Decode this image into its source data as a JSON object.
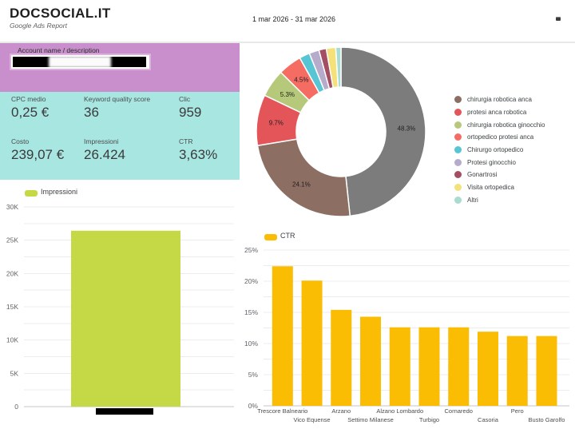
{
  "header": {
    "title": "DOCSOCIAL.IT",
    "subtitle": "Google Ads Report",
    "date_range": "1 mar 2026 - 31 mar 2026",
    "corner_icon": "tiny-dark-widget-icon"
  },
  "account": {
    "label": "Account name / description",
    "value_redacted": true
  },
  "metrics": {
    "items": [
      {
        "label": "CPC medio",
        "value": "0,25 €"
      },
      {
        "label": "Keyword quality score",
        "value": "36"
      },
      {
        "label": "Clic",
        "value": "959"
      },
      {
        "label": "Costo",
        "value": "239,07 €"
      },
      {
        "label": "Impressioni",
        "value": "26.424"
      },
      {
        "label": "CTR",
        "value": "3,63%"
      }
    ]
  },
  "colors": {
    "account_card_bg": "#c98fcc",
    "kpi_card_bg": "#a8e6e2",
    "impressions_bar": "#c5d947",
    "ctr_bar": "#fbbc04",
    "redaction": "#000000"
  },
  "chart_data": [
    {
      "id": "keywords-donut",
      "type": "pie",
      "donut": true,
      "legend_position": "right",
      "labels": [
        "",
        "chirurgia robotica anca",
        "protesi anca robotica",
        "chirurgia robotica ginocchio",
        "ortopedico protesi anca",
        "Chirurgo ortopedico",
        "Protesi ginocchio",
        "Gonartrosi",
        "Visita ortopedica",
        "Altri"
      ],
      "values": [
        48.3,
        24.1,
        9.7,
        5.3,
        4.5,
        2.0,
        1.9,
        1.4,
        1.8,
        1.0
      ],
      "colors": [
        "#7c7c7c",
        "#8d6e63",
        "#e4555a",
        "#b6c97b",
        "#f46c62",
        "#58c5d5",
        "#b7abcb",
        "#a34e63",
        "#f4e17a",
        "#a9dcd1"
      ],
      "shown_slice_labels": [
        "48.3%",
        "24.1%",
        "9.7%",
        "5.3%",
        "4.5%"
      ]
    },
    {
      "id": "impressions-bar",
      "type": "bar",
      "legend_label": "Impressioni",
      "categories": [
        ""
      ],
      "x_label_redacted": true,
      "values": [
        26424
      ],
      "bar_color": "#c5d947",
      "ylim": [
        0,
        30000
      ],
      "ytick_labels": [
        "0",
        "5K",
        "10K",
        "15K",
        "20K",
        "25K",
        "30K"
      ],
      "grid": true
    },
    {
      "id": "ctr-by-city-bar",
      "type": "bar",
      "legend_label": "CTR",
      "unit": "%",
      "categories": [
        "Trescore Balneario",
        "Vico Equense",
        "Arzano",
        "Settimo Milanese",
        "Alzano Lombardo",
        "Turbigo",
        "Cornaredo",
        "Casoria",
        "Pero",
        "Busto Garolfo"
      ],
      "values": [
        22.4,
        20.1,
        15.4,
        14.3,
        12.6,
        12.6,
        12.6,
        11.9,
        11.2,
        11.2
      ],
      "bar_color": "#fbbc04",
      "ylim": [
        0,
        25
      ],
      "ytick_labels": [
        "0%",
        "5%",
        "10%",
        "15%",
        "20%",
        "25%"
      ],
      "grid": true
    }
  ]
}
